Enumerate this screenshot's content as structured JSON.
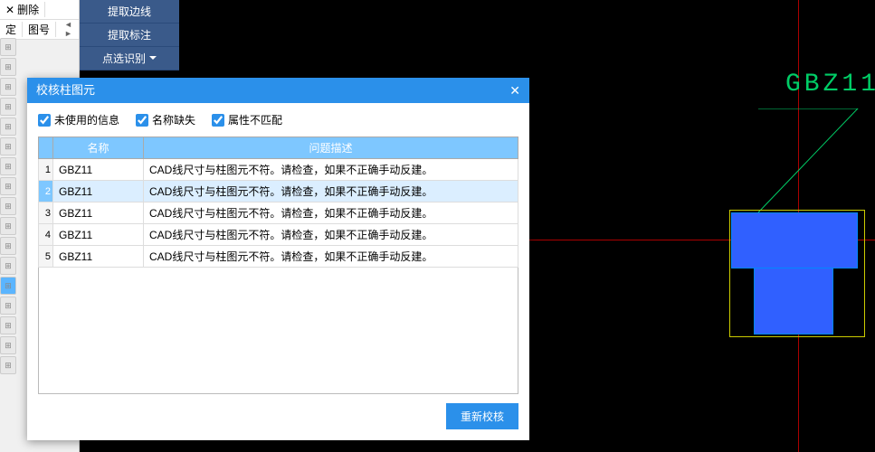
{
  "left": {
    "delete": "删除",
    "ding": "定",
    "tuhao": "图号"
  },
  "ribbon": {
    "btn1": "提取边线",
    "btn2": "提取标注",
    "btn3": "点选识别"
  },
  "dialog": {
    "title": "校核柱图元",
    "chk1": "未使用的信息",
    "chk2": "名称缺失",
    "chk3": "属性不匹配",
    "col_name": "名称",
    "col_desc": "问题描述",
    "rows": [
      {
        "i": "1",
        "name": "GBZ11",
        "desc": "CAD线尺寸与柱图元不符。请检查，如果不正确手动反建。"
      },
      {
        "i": "2",
        "name": "GBZ11",
        "desc": "CAD线尺寸与柱图元不符。请检查，如果不正确手动反建。"
      },
      {
        "i": "3",
        "name": "GBZ11",
        "desc": "CAD线尺寸与柱图元不符。请检查，如果不正确手动反建。"
      },
      {
        "i": "4",
        "name": "GBZ11",
        "desc": "CAD线尺寸与柱图元不符。请检查，如果不正确手动反建。"
      },
      {
        "i": "5",
        "name": "GBZ11",
        "desc": "CAD线尺寸与柱图元不符。请检查，如果不正确手动反建。"
      }
    ],
    "selected": 1,
    "recheck": "重新校核"
  },
  "cad": {
    "label": "GBZ11",
    "label_color": "#00cc66",
    "axis_color": "#aa0000",
    "box_color": "#cccc00",
    "shape_color": "#3060ff"
  }
}
